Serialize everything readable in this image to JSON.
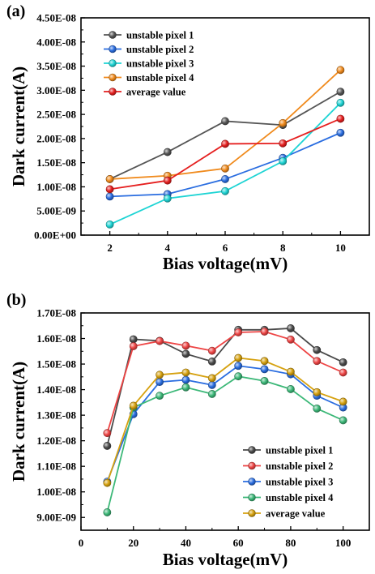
{
  "chart_data": [
    {
      "type": "line",
      "panel_label": "(a)",
      "xlabel": "Bias voltage(mV)",
      "ylabel": "Dark current(A)",
      "x": [
        2,
        4,
        6,
        8,
        10
      ],
      "xlim": [
        1,
        11
      ],
      "ylim": [
        0,
        4.5e-08
      ],
      "xticks": [
        "2",
        "4",
        "6",
        "8",
        "10"
      ],
      "yticks": [
        "0.00E+00",
        "5.00E-09",
        "1.00E-08",
        "1.50E-08",
        "2.00E-08",
        "2.50E-08",
        "3.00E-08",
        "3.50E-08",
        "4.00E-08",
        "4.50E-08"
      ],
      "grid": false,
      "legend_position": "top-left",
      "series": [
        {
          "name": "unstable pixel 1",
          "color": "#555555",
          "values": [
            1.16e-08,
            1.72e-08,
            2.36e-08,
            2.28e-08,
            2.97e-08
          ]
        },
        {
          "name": "unstable pixel 2",
          "color": "#2a6de0",
          "values": [
            8e-09,
            8.5e-09,
            1.16e-08,
            1.6e-08,
            2.12e-08
          ]
        },
        {
          "name": "unstable pixel 3",
          "color": "#1ed4d4",
          "values": [
            2.2e-09,
            7.6e-09,
            9.1e-09,
            1.53e-08,
            2.74e-08
          ]
        },
        {
          "name": "unstable pixel 4",
          "color": "#f08a1c",
          "values": [
            1.16e-08,
            1.23e-08,
            1.38e-08,
            2.32e-08,
            3.42e-08
          ]
        },
        {
          "name": "average value",
          "color": "#e51f1f",
          "values": [
            9.5e-09,
            1.13e-08,
            1.89e-08,
            1.9e-08,
            2.41e-08
          ]
        }
      ]
    },
    {
      "type": "line",
      "panel_label": "(b)",
      "xlabel": "Bias voltage(mV)",
      "ylabel": "Dark current(A)",
      "x": [
        10,
        20,
        30,
        40,
        50,
        60,
        70,
        80,
        90,
        100
      ],
      "xlim": [
        0,
        110
      ],
      "ylim": [
        8.5e-09,
        1.7e-08
      ],
      "xticks": [
        "0",
        "20",
        "40",
        "60",
        "80",
        "100"
      ],
      "xtick_values": [
        0,
        20,
        40,
        60,
        80,
        100
      ],
      "yticks": [
        "9.00E-09",
        "1.00E-08",
        "1.10E-08",
        "1.20E-08",
        "1.30E-08",
        "1.40E-08",
        "1.50E-08",
        "1.60E-08",
        "1.70E-08"
      ],
      "grid": false,
      "legend_position": "bottom-right",
      "series": [
        {
          "name": "unstable pixel 1",
          "color": "#4a4a4a",
          "values": [
            1.18e-08,
            1.597e-08,
            1.591e-08,
            1.54e-08,
            1.51e-08,
            1.634e-08,
            1.634e-08,
            1.64e-08,
            1.555e-08,
            1.507e-08
          ]
        },
        {
          "name": "unstable pixel 2",
          "color": "#ee4444",
          "values": [
            1.23e-08,
            1.57e-08,
            1.59e-08,
            1.572e-08,
            1.552e-08,
            1.624e-08,
            1.627e-08,
            1.596e-08,
            1.512e-08,
            1.467e-08
          ]
        },
        {
          "name": "unstable pixel 3",
          "color": "#2a6de0",
          "values": [
            1.04e-08,
            1.304e-08,
            1.43e-08,
            1.438e-08,
            1.418e-08,
            1.493e-08,
            1.48e-08,
            1.46e-08,
            1.376e-08,
            1.33e-08
          ]
        },
        {
          "name": "unstable pixel 4",
          "color": "#3cb878",
          "values": [
            9.2e-09,
            1.33e-08,
            1.376e-08,
            1.409e-08,
            1.383e-08,
            1.452e-08,
            1.434e-08,
            1.402e-08,
            1.326e-08,
            1.28e-08
          ]
        },
        {
          "name": "average value",
          "color": "#d6a10f",
          "values": [
            1.035e-08,
            1.337e-08,
            1.458e-08,
            1.467e-08,
            1.445e-08,
            1.524e-08,
            1.512e-08,
            1.47e-08,
            1.39e-08,
            1.353e-08
          ]
        }
      ]
    }
  ]
}
